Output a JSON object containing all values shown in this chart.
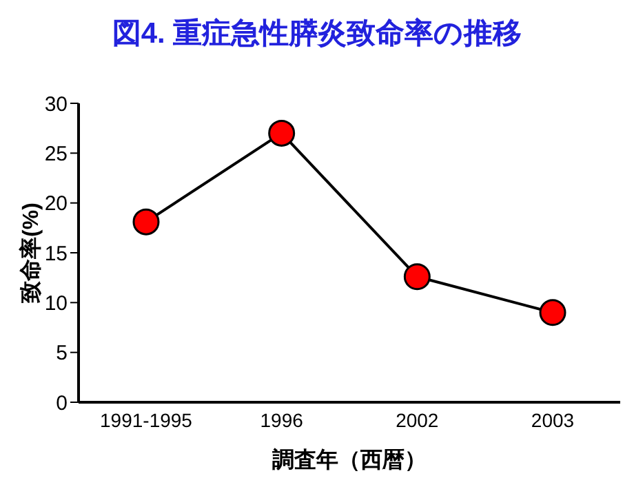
{
  "chart_data": {
    "type": "line",
    "title": "図4. 重症急性膵炎致命率の推移",
    "xlabel": "調査年（西暦）",
    "ylabel": "致命率(%)",
    "categories": [
      "1991-1995",
      "1996",
      "2002",
      "2003"
    ],
    "series": [
      {
        "color": "#ff0000",
        "values": [
          18.1,
          27.0,
          12.6,
          9.0
        ]
      }
    ],
    "ylim": [
      0,
      30
    ],
    "yticks": [
      0,
      5,
      10,
      15,
      20,
      25,
      30
    ],
    "grid": false,
    "legend": false,
    "marker": "circle",
    "line_style": "solid"
  }
}
